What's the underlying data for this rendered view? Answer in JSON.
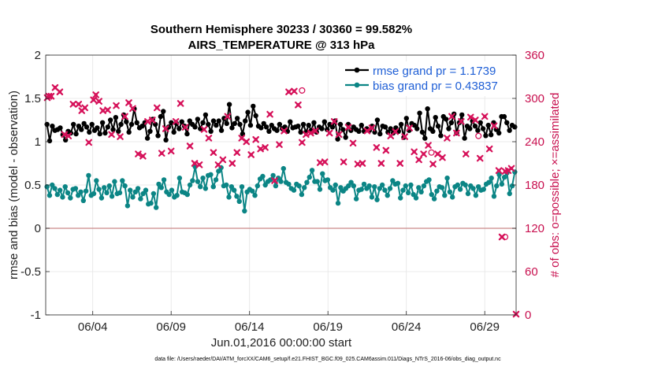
{
  "chart_data": {
    "type": "line",
    "title": [
      "Southern Hemisphere 30233 / 30360 = 99.582%",
      "AIRS_TEMPERATURE @ 313 hPa"
    ],
    "xlabel": "Jun.01,2016 00:00:00 start",
    "ylabel": "rmse and bias (model - observation)",
    "ylabel_right": "# of obs: o=possible; ×=assimilated",
    "footnote": "data file: /Users/raeder/DAI/ATM_forcXX/CAM6_setup/f.e21.FHIST_BGC.f09_025.CAM6assim.011/Diags_NTrS_2016-06/obs_diag_output.nc",
    "x_ticks": [
      {
        "value": 4,
        "label": "06/04"
      },
      {
        "value": 9,
        "label": "06/09"
      },
      {
        "value": 14,
        "label": "06/14"
      },
      {
        "value": 19,
        "label": "06/19"
      },
      {
        "value": 24,
        "label": "06/24"
      },
      {
        "value": 29,
        "label": "06/29"
      }
    ],
    "xlim": [
      1.0,
      31.0
    ],
    "ylim": [
      -1,
      2
    ],
    "ylim_right": [
      0,
      360
    ],
    "y_ticks": [
      "-1",
      "-0.5",
      "0",
      "0.5",
      "1",
      "1.5",
      "2"
    ],
    "y_ticks_right": [
      "0",
      "60",
      "120",
      "180",
      "240",
      "300",
      "360"
    ],
    "grid": true,
    "legend_position": "top-right",
    "colors": {
      "rmse": "#000000",
      "bias": "#0b8585",
      "obs": "#d6125a",
      "zero": "#c98a8a",
      "legend_text": "#1f5fd6"
    },
    "series": [
      {
        "name": "rmse grand pr = 1.1739",
        "color": "#000000",
        "values": [
          1.2,
          1.01,
          1.18,
          1.13,
          1.14,
          1.16,
          1.08,
          1.02,
          1.12,
          1.1,
          1.2,
          1.09,
          1.18,
          1.14,
          1.21,
          1.17,
          1.11,
          1.2,
          1.13,
          1.16,
          1.09,
          1.22,
          1.1,
          1.17,
          1.25,
          1.14,
          1.28,
          1.12,
          1.2,
          1.31,
          1.23,
          1.11,
          1.2,
          1.38,
          1.22,
          1.16,
          1.18,
          1.22,
          1.04,
          1.12,
          1.26,
          1.2,
          1.07,
          1.29,
          1.35,
          1.02,
          1.17,
          1.22,
          1.11,
          1.21,
          1.15,
          1.23,
          1.18,
          1.09,
          1.24,
          1.2,
          1.17,
          1.26,
          1.15,
          1.22,
          1.31,
          1.2,
          1.12,
          1.24,
          1.19,
          1.24,
          1.13,
          1.27,
          1.21,
          1.43,
          1.16,
          1.21,
          1.27,
          1.2,
          1.09,
          1.24,
          1.34,
          1.19,
          1.41,
          1.3,
          1.18,
          1.16,
          1.21,
          1.17,
          1.12,
          1.19,
          1.15,
          1.13,
          1.2,
          1.15,
          1.17,
          1.12,
          1.23,
          1.16,
          1.17,
          1.18,
          1.11,
          1.2,
          1.11,
          1.19,
          1.13,
          1.22,
          1.11,
          1.17,
          1.15,
          1.23,
          1.14,
          1.2,
          1.17,
          1.24,
          1.03,
          1.2,
          1.14,
          1.05,
          1.2,
          1.13,
          1.17,
          1.14,
          1.12,
          1.19,
          1.12,
          1.15,
          1.13,
          1.18,
          1.11,
          1.25,
          1.09,
          1.18,
          1.17,
          1.11,
          1.15,
          1.1,
          1.16,
          1.12,
          1.2,
          1.05,
          1.27,
          1.13,
          1.21,
          1.19,
          1.15,
          1.33,
          1.11,
          1.04,
          1.38,
          1.15,
          1.12,
          1.28,
          1.18,
          1.07,
          1.29,
          1.26,
          1.15,
          1.22,
          1.32,
          1.1,
          1.22,
          1.31,
          1.04,
          1.18,
          1.15,
          1.24,
          1.18,
          1.13,
          1.22,
          1.15,
          1.07,
          1.19,
          1.08,
          1.22,
          1.14,
          1.1,
          1.29,
          1.29,
          1.22,
          1.13,
          1.19,
          1.17
        ]
      },
      {
        "name": "bias grand pr = 0.43837",
        "color": "#0b8585",
        "values": [
          0.48,
          0.38,
          0.5,
          0.46,
          0.39,
          0.44,
          0.36,
          0.48,
          0.41,
          0.35,
          0.45,
          0.46,
          0.38,
          0.42,
          0.32,
          0.43,
          0.61,
          0.38,
          0.4,
          0.55,
          0.45,
          0.35,
          0.47,
          0.41,
          0.49,
          0.37,
          0.54,
          0.4,
          0.41,
          0.55,
          0.49,
          0.26,
          0.44,
          0.36,
          0.42,
          0.46,
          0.34,
          0.4,
          0.44,
          0.28,
          0.29,
          0.4,
          0.24,
          0.51,
          0.47,
          0.56,
          0.42,
          0.39,
          0.44,
          0.36,
          0.38,
          0.58,
          0.42,
          0.41,
          0.39,
          0.5,
          0.55,
          0.71,
          0.54,
          0.48,
          0.58,
          0.46,
          0.61,
          0.62,
          0.48,
          0.56,
          0.66,
          0.7,
          0.49,
          0.5,
          0.36,
          0.48,
          0.44,
          0.37,
          0.31,
          0.48,
          0.2,
          0.42,
          0.45,
          0.43,
          0.38,
          0.49,
          0.57,
          0.6,
          0.5,
          0.54,
          0.56,
          0.61,
          0.49,
          0.58,
          0.54,
          0.69,
          0.53,
          0.51,
          0.46,
          0.44,
          0.51,
          0.49,
          0.39,
          0.47,
          0.53,
          0.59,
          0.67,
          0.54,
          0.54,
          0.45,
          0.63,
          0.55,
          0.56,
          0.47,
          0.44,
          0.5,
          0.29,
          0.47,
          0.43,
          0.46,
          0.49,
          0.53,
          0.49,
          0.34,
          0.44,
          0.45,
          0.51,
          0.46,
          0.49,
          0.36,
          0.48,
          0.33,
          0.46,
          0.5,
          0.44,
          0.38,
          0.46,
          0.55,
          0.51,
          0.52,
          0.35,
          0.44,
          0.49,
          0.41,
          0.5,
          0.39,
          0.35,
          0.47,
          0.42,
          0.49,
          0.54,
          0.56,
          0.39,
          0.34,
          0.43,
          0.48,
          0.47,
          0.38,
          0.58,
          0.42,
          0.36,
          0.48,
          0.5,
          0.45,
          0.52,
          0.5,
          0.4,
          0.49,
          0.46,
          0.38,
          0.48,
          0.44,
          0.45,
          0.51,
          0.53,
          0.58,
          0.37,
          0.49,
          0.62,
          0.51,
          0.59,
          0.64,
          0.4,
          0.49,
          0.65
        ]
      }
    ],
    "obs_assimilated": {
      "axis": "right",
      "x": [
        1.1,
        1.2,
        1.35,
        1.6,
        1.9,
        2.2,
        2.45,
        2.75,
        3.1,
        3.3,
        3.5,
        3.75,
        4.05,
        4.2,
        4.4,
        4.65,
        4.95,
        5.2,
        5.5,
        5.75,
        6.05,
        6.3,
        6.55,
        6.9,
        7.2,
        7.5,
        7.8,
        8.1,
        8.4,
        8.65,
        9.0,
        9.3,
        9.6,
        9.9,
        10.2,
        10.5,
        10.8,
        11.1,
        11.4,
        11.7,
        12.0,
        12.3,
        12.6,
        12.9,
        13.2,
        13.5,
        13.8,
        14.1,
        14.4,
        14.7,
        15.0,
        15.3,
        15.6,
        15.9,
        16.2,
        16.5,
        16.85,
        17.1,
        17.35,
        17.6,
        17.9,
        18.2,
        18.5,
        18.8,
        19.1,
        19.4,
        19.7,
        20.0,
        20.3,
        20.6,
        20.9,
        21.2,
        21.5,
        21.8,
        22.1,
        22.4,
        22.7,
        23.0,
        23.3,
        23.6,
        23.9,
        24.2,
        24.5,
        24.8,
        25.1,
        25.4,
        25.7,
        26.0,
        26.3,
        26.6,
        26.9,
        27.2,
        27.5,
        27.8,
        28.1,
        28.4,
        28.7,
        29.0,
        29.3,
        29.6,
        29.9,
        30.1,
        30.3,
        30.5,
        30.7,
        31.0
      ],
      "y": [
        301,
        303,
        303,
        315,
        309,
        250,
        248,
        292,
        292,
        283,
        287,
        239,
        298,
        305,
        296,
        283,
        284,
        250,
        290,
        247,
        275,
        294,
        286,
        223,
        220,
        268,
        270,
        287,
        224,
        258,
        227,
        268,
        293,
        260,
        234,
        210,
        208,
        257,
        245,
        225,
        208,
        215,
        275,
        210,
        225,
        245,
        240,
        222,
        243,
        230,
        232,
        278,
        186,
        236,
        255,
        309,
        310,
        291,
        239,
        250,
        252,
        255,
        211,
        212,
        252,
        268,
        250,
        212,
        260,
        238,
        209,
        210,
        255,
        259,
        232,
        210,
        228,
        248,
        254,
        210,
        247,
        259,
        226,
        215,
        223,
        235,
        209,
        223,
        218,
        245,
        275,
        252,
        268,
        223,
        274,
        270,
        217,
        275,
        230,
        262,
        200,
        108,
        199,
        200,
        203,
        1
      ]
    },
    "obs_possible": {
      "axis": "right",
      "x": [
        17.35,
        25.6,
        28.6,
        30.3
      ],
      "y": [
        311,
        225,
        248,
        108
      ]
    }
  }
}
